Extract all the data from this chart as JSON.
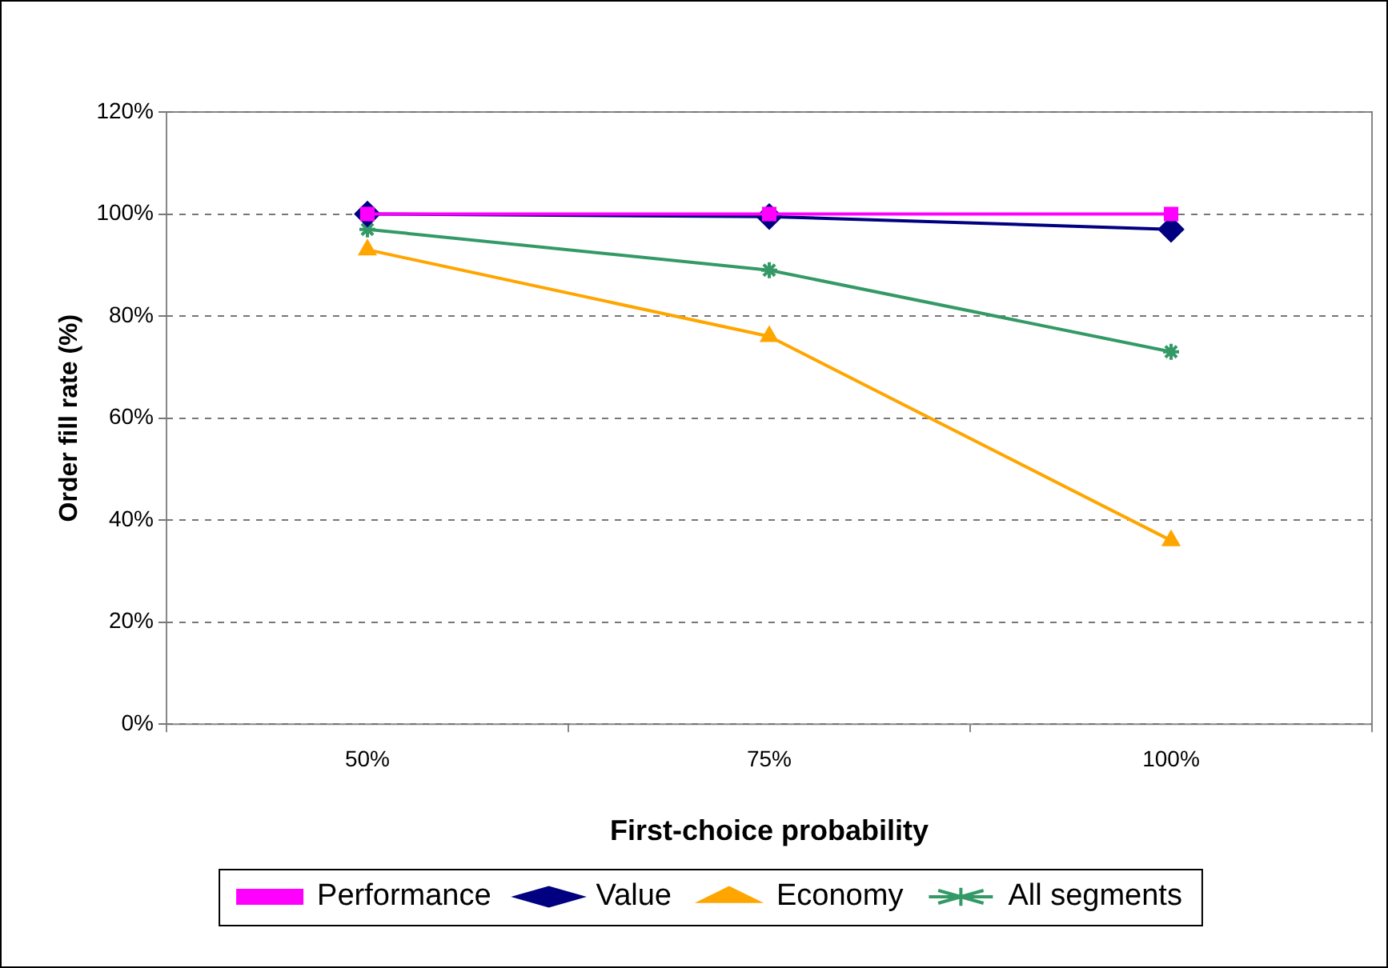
{
  "chart_data": {
    "type": "line",
    "xlabel": "First-choice probability",
    "ylabel": "Order fill rate (%)",
    "categories": [
      "50%",
      "75%",
      "100%"
    ],
    "series": [
      {
        "name": "Performance",
        "color": "#ff00ff",
        "values": [
          100,
          100,
          100
        ],
        "marker": "square"
      },
      {
        "name": "Value",
        "color": "#000080",
        "values": [
          100,
          99.5,
          97
        ],
        "marker": "diamond"
      },
      {
        "name": "Economy",
        "color": "#ffa500",
        "values": [
          93,
          76,
          36
        ],
        "marker": "triangle"
      },
      {
        "name": "All segments",
        "color": "#339966",
        "values": [
          97,
          89,
          73
        ],
        "marker": "cross"
      }
    ],
    "ylim": [
      0,
      120
    ],
    "yticks": [
      {
        "value": 0,
        "label": "0%"
      },
      {
        "value": 20,
        "label": "20%"
      },
      {
        "value": 40,
        "label": "40%"
      },
      {
        "value": 60,
        "label": "60%"
      },
      {
        "value": 80,
        "label": "80%"
      },
      {
        "value": 100,
        "label": "100%"
      },
      {
        "value": 120,
        "label": "120%"
      }
    ],
    "grid": "y",
    "legend": "bottom",
    "line_style": "solid"
  }
}
